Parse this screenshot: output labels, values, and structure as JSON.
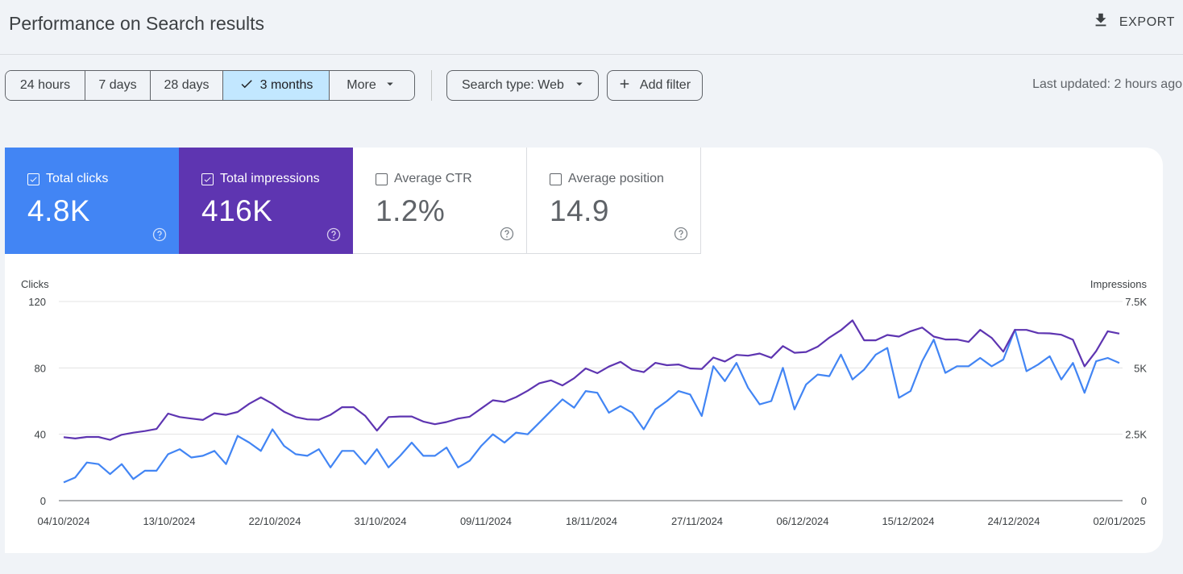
{
  "header": {
    "title": "Performance on Search results",
    "export_label": "EXPORT"
  },
  "toolbar": {
    "ranges": [
      "24 hours",
      "7 days",
      "28 days",
      "3 months"
    ],
    "active_range": "3 months",
    "more_label": "More",
    "search_type_label": "Search type: Web",
    "add_filter_label": "Add filter",
    "last_updated": "Last updated: 2 hours ago"
  },
  "metrics": [
    {
      "label": "Total clicks",
      "value": "4.8K",
      "checked": true,
      "color": "#4285f4"
    },
    {
      "label": "Total impressions",
      "value": "416K",
      "checked": true,
      "color": "#5e35b1"
    },
    {
      "label": "Average CTR",
      "value": "1.2%",
      "checked": false
    },
    {
      "label": "Average position",
      "value": "14.9",
      "checked": false
    }
  ],
  "chart_data": {
    "type": "line",
    "ylabel_left": "Clicks",
    "ylabel_right": "Impressions",
    "yticks_left": [
      "120",
      "80",
      "40",
      "0"
    ],
    "yticks_right": [
      "7.5K",
      "5K",
      "2.5K",
      "0"
    ],
    "ylim_left": [
      0,
      120
    ],
    "ylim_right": [
      0,
      7500
    ],
    "xticks": [
      "04/10/2024",
      "13/10/2024",
      "22/10/2024",
      "31/10/2024",
      "09/11/2024",
      "18/11/2024",
      "27/11/2024",
      "06/12/2024",
      "15/12/2024",
      "24/12/2024",
      "02/01/2025"
    ],
    "grid": true,
    "series": [
      {
        "name": "Clicks",
        "axis": "left",
        "color": "#4285f4",
        "values": [
          11,
          14,
          23,
          22,
          16,
          22,
          13,
          18,
          18,
          28,
          31,
          26,
          27,
          30,
          22,
          39,
          35,
          30,
          43,
          33,
          28,
          27,
          31,
          20,
          30,
          30,
          22,
          31,
          20,
          27,
          35,
          27,
          27,
          32,
          20,
          24,
          33,
          40,
          35,
          41,
          40,
          47,
          54,
          61,
          56,
          66,
          65,
          53,
          57,
          53,
          43,
          55,
          60,
          66,
          64,
          51,
          81,
          72,
          83,
          68,
          58,
          60,
          80,
          55,
          70,
          76,
          75,
          88,
          73,
          79,
          88,
          92,
          62,
          66,
          84,
          97,
          77,
          81,
          81,
          86,
          81,
          85,
          103,
          78,
          82,
          87,
          73,
          83,
          65,
          84,
          86,
          83
        ]
      },
      {
        "name": "Impressions",
        "axis": "right",
        "color": "#5e35b1",
        "values": [
          2390,
          2340,
          2400,
          2400,
          2290,
          2480,
          2560,
          2620,
          2700,
          3280,
          3150,
          3090,
          3040,
          3290,
          3230,
          3340,
          3650,
          3890,
          3650,
          3350,
          3150,
          3060,
          3050,
          3230,
          3520,
          3520,
          3190,
          2640,
          3150,
          3170,
          3170,
          2980,
          2880,
          2960,
          3090,
          3160,
          3470,
          3780,
          3720,
          3900,
          4140,
          4420,
          4530,
          4340,
          4610,
          4980,
          4800,
          5050,
          5230,
          4930,
          4840,
          5190,
          5100,
          5130,
          4980,
          4960,
          5390,
          5240,
          5490,
          5460,
          5540,
          5380,
          5820,
          5570,
          5600,
          5800,
          6140,
          6420,
          6790,
          6040,
          6040,
          6240,
          6180,
          6380,
          6520,
          6180,
          6070,
          6070,
          5980,
          6430,
          6130,
          5610,
          6430,
          6430,
          6310,
          6300,
          6250,
          6060,
          5060,
          5630,
          6380,
          6290
        ]
      }
    ]
  }
}
